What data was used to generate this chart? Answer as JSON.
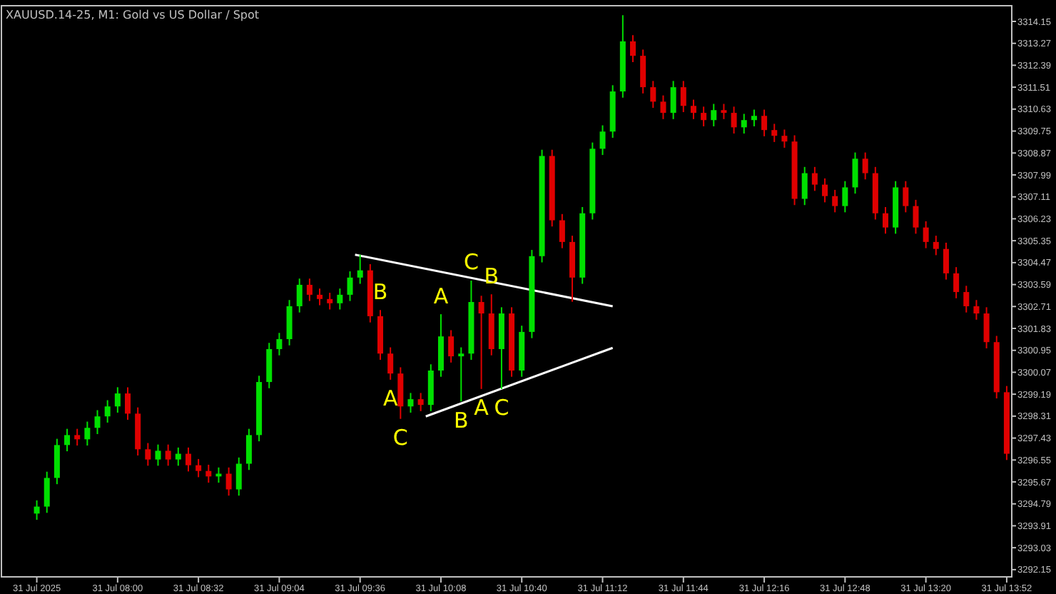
{
  "chart_data": {
    "type": "candlestick",
    "title": "XAUUSD.14-25, M1:  Gold vs US Dollar / Spot",
    "x": [
      "2025-07-31T07:28",
      "2025-07-31T07:32",
      "2025-07-31T07:36",
      "2025-07-31T07:40",
      "2025-07-31T07:44",
      "2025-07-31T07:48",
      "2025-07-31T07:52",
      "2025-07-31T07:56",
      "2025-07-31T08:00",
      "2025-07-31T08:04",
      "2025-07-31T08:08",
      "2025-07-31T08:12",
      "2025-07-31T08:16",
      "2025-07-31T08:20",
      "2025-07-31T08:24",
      "2025-07-31T08:28",
      "2025-07-31T08:32",
      "2025-07-31T08:36",
      "2025-07-31T08:40",
      "2025-07-31T08:44",
      "2025-07-31T08:48",
      "2025-07-31T08:52",
      "2025-07-31T08:56",
      "2025-07-31T09:00",
      "2025-07-31T09:04",
      "2025-07-31T09:08",
      "2025-07-31T09:12",
      "2025-07-31T09:16",
      "2025-07-31T09:20",
      "2025-07-31T09:24",
      "2025-07-31T09:28",
      "2025-07-31T09:32",
      "2025-07-31T09:36",
      "2025-07-31T09:40",
      "2025-07-31T09:44",
      "2025-07-31T09:48",
      "2025-07-31T09:52",
      "2025-07-31T09:56",
      "2025-07-31T10:00",
      "2025-07-31T10:04",
      "2025-07-31T10:08",
      "2025-07-31T10:12",
      "2025-07-31T10:16",
      "2025-07-31T10:20",
      "2025-07-31T10:24",
      "2025-07-31T10:28",
      "2025-07-31T10:32",
      "2025-07-31T10:36",
      "2025-07-31T10:40",
      "2025-07-31T10:44",
      "2025-07-31T10:48",
      "2025-07-31T10:52",
      "2025-07-31T10:56",
      "2025-07-31T11:00",
      "2025-07-31T11:04",
      "2025-07-31T11:08",
      "2025-07-31T11:12",
      "2025-07-31T11:16",
      "2025-07-31T11:20",
      "2025-07-31T11:24",
      "2025-07-31T11:28",
      "2025-07-31T11:32",
      "2025-07-31T11:36",
      "2025-07-31T11:40",
      "2025-07-31T11:44",
      "2025-07-31T11:48",
      "2025-07-31T11:52",
      "2025-07-31T11:56",
      "2025-07-31T12:00",
      "2025-07-31T12:04",
      "2025-07-31T12:08",
      "2025-07-31T12:12",
      "2025-07-31T12:16",
      "2025-07-31T12:20",
      "2025-07-31T12:24",
      "2025-07-31T12:28",
      "2025-07-31T12:32",
      "2025-07-31T12:36",
      "2025-07-31T12:40",
      "2025-07-31T12:44",
      "2025-07-31T12:48",
      "2025-07-31T12:52",
      "2025-07-31T12:56",
      "2025-07-31T13:00",
      "2025-07-31T13:04",
      "2025-07-31T13:08",
      "2025-07-31T13:12",
      "2025-07-31T13:16",
      "2025-07-31T13:20",
      "2025-07-31T13:24",
      "2025-07-31T13:28",
      "2025-07-31T13:32",
      "2025-07-31T13:36",
      "2025-07-31T13:40",
      "2025-07-31T13:44",
      "2025-07-31T13:48",
      "2025-07-31T13:52"
    ],
    "ohlc": [
      [
        3294.4,
        3294.93,
        3294.15,
        3294.68
      ],
      [
        3294.68,
        3296.08,
        3294.43,
        3295.83
      ],
      [
        3295.83,
        3297.4,
        3295.58,
        3297.15
      ],
      [
        3297.15,
        3297.8,
        3296.9,
        3297.55
      ],
      [
        3297.55,
        3297.8,
        3297.13,
        3297.38
      ],
      [
        3297.38,
        3298.09,
        3297.13,
        3297.84
      ],
      [
        3297.84,
        3298.55,
        3297.59,
        3298.3
      ],
      [
        3298.3,
        3298.95,
        3298.05,
        3298.7
      ],
      [
        3298.7,
        3299.47,
        3298.45,
        3299.22
      ],
      [
        3299.22,
        3299.47,
        3298.16,
        3298.41
      ],
      [
        3298.41,
        3298.66,
        3296.73,
        3296.98
      ],
      [
        3296.98,
        3297.23,
        3296.32,
        3296.57
      ],
      [
        3296.57,
        3297.17,
        3296.32,
        3296.92
      ],
      [
        3296.92,
        3297.17,
        3296.32,
        3296.57
      ],
      [
        3296.57,
        3297.05,
        3296.32,
        3296.8
      ],
      [
        3296.8,
        3297.05,
        3296.09,
        3296.34
      ],
      [
        3296.34,
        3296.59,
        3295.86,
        3296.11
      ],
      [
        3296.11,
        3296.36,
        3295.64,
        3295.89
      ],
      [
        3295.89,
        3296.25,
        3295.64,
        3296.0
      ],
      [
        3296.0,
        3296.25,
        3295.12,
        3295.37
      ],
      [
        3295.37,
        3296.65,
        3295.12,
        3296.4
      ],
      [
        3296.4,
        3297.8,
        3296.15,
        3297.55
      ],
      [
        3297.55,
        3299.93,
        3297.3,
        3299.68
      ],
      [
        3299.68,
        3301.25,
        3299.43,
        3301.0
      ],
      [
        3301.0,
        3301.65,
        3300.75,
        3301.4
      ],
      [
        3301.4,
        3302.97,
        3301.15,
        3302.72
      ],
      [
        3302.72,
        3303.83,
        3302.47,
        3303.58
      ],
      [
        3303.58,
        3303.83,
        3302.93,
        3303.18
      ],
      [
        3303.18,
        3303.43,
        3302.76,
        3303.01
      ],
      [
        3303.01,
        3303.26,
        3302.59,
        3302.84
      ],
      [
        3302.84,
        3303.43,
        3302.59,
        3303.18
      ],
      [
        3303.18,
        3304.12,
        3302.93,
        3303.87
      ],
      [
        3303.87,
        3304.79,
        3303.62,
        3304.16
      ],
      [
        3304.16,
        3304.41,
        3302.07,
        3302.32
      ],
      [
        3302.32,
        3302.57,
        3300.57,
        3300.82
      ],
      [
        3300.82,
        3301.07,
        3299.77,
        3300.02
      ],
      [
        3300.02,
        3300.27,
        3298.2,
        3298.7
      ],
      [
        3298.7,
        3299.24,
        3298.45,
        3298.99
      ],
      [
        3298.99,
        3299.24,
        3298.51,
        3298.76
      ],
      [
        3298.76,
        3300.39,
        3298.51,
        3300.14
      ],
      [
        3300.14,
        3302.4,
        3299.89,
        3301.51
      ],
      [
        3301.51,
        3301.76,
        3300.46,
        3300.71
      ],
      [
        3300.71,
        3301.07,
        3298.9,
        3300.82
      ],
      [
        3300.82,
        3303.75,
        3300.57,
        3302.89
      ],
      [
        3302.89,
        3303.14,
        3299.4,
        3302.43
      ],
      [
        3302.43,
        3303.2,
        3300.75,
        3301.0
      ],
      [
        3301.0,
        3302.68,
        3299.4,
        3302.43
      ],
      [
        3302.43,
        3302.68,
        3299.89,
        3300.14
      ],
      [
        3300.14,
        3301.94,
        3299.89,
        3301.69
      ],
      [
        3301.69,
        3304.98,
        3301.44,
        3304.73
      ],
      [
        3304.73,
        3309.0,
        3304.48,
        3308.75
      ],
      [
        3308.75,
        3309.0,
        3305.92,
        3306.17
      ],
      [
        3306.17,
        3306.42,
        3305.05,
        3305.3
      ],
      [
        3305.3,
        3305.55,
        3302.9,
        3303.87
      ],
      [
        3303.87,
        3306.7,
        3303.62,
        3306.45
      ],
      [
        3306.45,
        3309.29,
        3306.2,
        3309.04
      ],
      [
        3309.04,
        3309.98,
        3308.79,
        3309.73
      ],
      [
        3309.73,
        3311.59,
        3309.48,
        3311.34
      ],
      [
        3311.34,
        3314.4,
        3311.09,
        3313.35
      ],
      [
        3313.35,
        3313.6,
        3312.52,
        3312.77
      ],
      [
        3312.77,
        3313.02,
        3311.26,
        3311.51
      ],
      [
        3311.51,
        3311.76,
        3310.68,
        3310.93
      ],
      [
        3310.93,
        3311.18,
        3310.23,
        3310.48
      ],
      [
        3310.48,
        3311.76,
        3310.23,
        3311.51
      ],
      [
        3311.51,
        3311.76,
        3310.51,
        3310.76
      ],
      [
        3310.76,
        3311.01,
        3310.23,
        3310.48
      ],
      [
        3310.48,
        3310.73,
        3309.94,
        3310.19
      ],
      [
        3310.19,
        3310.84,
        3309.94,
        3310.59
      ],
      [
        3310.59,
        3310.84,
        3310.23,
        3310.48
      ],
      [
        3310.48,
        3310.73,
        3309.65,
        3309.9
      ],
      [
        3309.9,
        3310.44,
        3309.65,
        3310.19
      ],
      [
        3310.19,
        3310.61,
        3309.94,
        3310.36
      ],
      [
        3310.36,
        3310.61,
        3309.54,
        3309.79
      ],
      [
        3309.79,
        3310.04,
        3309.31,
        3309.56
      ],
      [
        3309.56,
        3309.81,
        3309.08,
        3309.33
      ],
      [
        3309.33,
        3309.58,
        3306.78,
        3307.03
      ],
      [
        3307.03,
        3308.31,
        3306.78,
        3308.06
      ],
      [
        3308.06,
        3308.31,
        3307.35,
        3307.6
      ],
      [
        3307.6,
        3307.85,
        3306.89,
        3307.14
      ],
      [
        3307.14,
        3307.39,
        3306.49,
        3306.74
      ],
      [
        3306.74,
        3307.74,
        3306.49,
        3307.49
      ],
      [
        3307.49,
        3308.89,
        3307.24,
        3308.64
      ],
      [
        3308.64,
        3308.89,
        3307.81,
        3308.06
      ],
      [
        3308.06,
        3308.31,
        3306.2,
        3306.45
      ],
      [
        3306.45,
        3306.7,
        3305.63,
        3305.88
      ],
      [
        3305.88,
        3307.74,
        3305.63,
        3307.49
      ],
      [
        3307.49,
        3307.74,
        3306.49,
        3306.74
      ],
      [
        3306.74,
        3306.99,
        3305.63,
        3305.88
      ],
      [
        3305.88,
        3306.13,
        3305.05,
        3305.3
      ],
      [
        3305.3,
        3305.55,
        3304.77,
        3305.02
      ],
      [
        3305.02,
        3305.27,
        3303.79,
        3304.04
      ],
      [
        3304.04,
        3304.29,
        3303.04,
        3303.29
      ],
      [
        3303.29,
        3303.54,
        3302.47,
        3302.72
      ],
      [
        3302.72,
        3302.97,
        3302.18,
        3302.43
      ],
      [
        3302.43,
        3302.68,
        3301.03,
        3301.28
      ],
      [
        3301.28,
        3301.53,
        3299.02,
        3299.27
      ],
      [
        3299.27,
        3299.52,
        3296.55,
        3296.8
      ]
    ],
    "series": [
      {
        "type": "line",
        "color": "#ffffff",
        "x": [
          "2025-07-31T09:34",
          "2025-07-31T11:16"
        ],
        "values": [
          3304.79,
          3302.72
        ]
      },
      {
        "type": "line",
        "color": "#ffffff",
        "x": [
          "2025-07-31T10:02",
          "2025-07-31T11:16"
        ],
        "values": [
          3298.3,
          3301.05
        ]
      }
    ],
    "annotations": [
      {
        "text": "B",
        "x": "2025-07-31T09:44",
        "y": 3302.57
      },
      {
        "text": "A",
        "x": "2025-07-31T09:48",
        "y": 3299.77
      },
      {
        "text": "C",
        "x": "2025-07-31T09:52",
        "y": 3298.2
      },
      {
        "text": "A",
        "x": "2025-07-31T10:08",
        "y": 3302.4
      },
      {
        "text": "C",
        "x": "2025-07-31T10:20",
        "y": 3303.75
      },
      {
        "text": "B",
        "x": "2025-07-31T10:28",
        "y": 3303.2
      },
      {
        "text": "B",
        "x": "2025-07-31T10:16",
        "y": 3298.9
      },
      {
        "text": "A",
        "x": "2025-07-31T10:24",
        "y": 3299.4
      },
      {
        "text": "C",
        "x": "2025-07-31T10:32",
        "y": 3299.4
      }
    ],
    "xlim": [
      "2025-07-31T07:14",
      "2025-07-31T13:54"
    ],
    "xticks": [
      {
        "value": "2025-07-31T07:28",
        "label": "31 Jul 2025"
      },
      {
        "value": "2025-07-31T08:00",
        "label": "31 Jul 08:00"
      },
      {
        "value": "2025-07-31T08:32",
        "label": "31 Jul 08:32"
      },
      {
        "value": "2025-07-31T09:04",
        "label": "31 Jul 09:04"
      },
      {
        "value": "2025-07-31T09:36",
        "label": "31 Jul 09:36"
      },
      {
        "value": "2025-07-31T10:08",
        "label": "31 Jul 10:08"
      },
      {
        "value": "2025-07-31T10:40",
        "label": "31 Jul 10:40"
      },
      {
        "value": "2025-07-31T11:12",
        "label": "31 Jul 11:12"
      },
      {
        "value": "2025-07-31T11:44",
        "label": "31 Jul 11:44"
      },
      {
        "value": "2025-07-31T12:16",
        "label": "31 Jul 12:16"
      },
      {
        "value": "2025-07-31T12:48",
        "label": "31 Jul 12:48"
      },
      {
        "value": "2025-07-31T13:20",
        "label": "31 Jul 13:20"
      },
      {
        "value": "2025-07-31T13:52",
        "label": "31 Jul 13:52"
      }
    ],
    "ylim": [
      3291.86,
      3314.78
    ],
    "yticks": [
      3292.15,
      3293.03,
      3293.91,
      3294.79,
      3295.67,
      3296.55,
      3297.43,
      3298.31,
      3299.19,
      3300.07,
      3300.95,
      3301.83,
      3302.71,
      3303.59,
      3304.47,
      3305.35,
      3306.23,
      3307.11,
      3307.99,
      3308.87,
      3309.75,
      3310.63,
      3311.51,
      3312.39,
      3313.27,
      3314.15
    ],
    "grid": false
  }
}
